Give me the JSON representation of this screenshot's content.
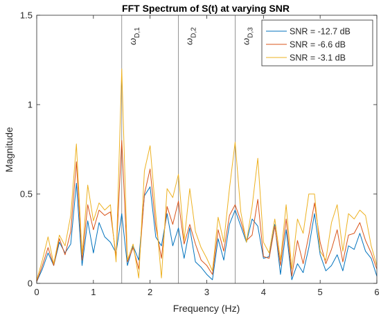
{
  "chart_data": {
    "type": "line",
    "title": "FFT Spectrum of S(t) at varying SNR",
    "xlabel": "Frequency (Hz)",
    "ylabel": "Magnitude",
    "xlim": [
      0,
      6
    ],
    "ylim": [
      0,
      1.5
    ],
    "xticks": [
      "0",
      "1",
      "2",
      "3",
      "4",
      "5",
      "6"
    ],
    "yticks": [
      "0",
      "0.5",
      "1",
      "1.5"
    ],
    "grid": false,
    "legend_position": "top-right",
    "markers": [
      {
        "x": 1.5,
        "label_main": "ω",
        "label_sub": "D,1"
      },
      {
        "x": 2.5,
        "label_main": "ω",
        "label_sub": "D,2"
      },
      {
        "x": 3.5,
        "label_main": "ω",
        "label_sub": "D,3"
      }
    ],
    "x": [
      0,
      0.1,
      0.2,
      0.3,
      0.4,
      0.5,
      0.6,
      0.7,
      0.8,
      0.9,
      1.0,
      1.1,
      1.2,
      1.3,
      1.4,
      1.5,
      1.6,
      1.7,
      1.8,
      1.9,
      2.0,
      2.1,
      2.2,
      2.3,
      2.4,
      2.5,
      2.6,
      2.7,
      2.8,
      2.9,
      3.0,
      3.1,
      3.2,
      3.3,
      3.4,
      3.5,
      3.6,
      3.7,
      3.8,
      3.9,
      4.0,
      4.1,
      4.2,
      4.3,
      4.4,
      4.5,
      4.6,
      4.7,
      4.8,
      4.9,
      5.0,
      5.1,
      5.2,
      5.3,
      5.4,
      5.5,
      5.6,
      5.7,
      5.8,
      5.9,
      6.0
    ],
    "series": [
      {
        "name": "SNR = -12.7 dB",
        "color": "#0072BD",
        "values": [
          0.01,
          0.08,
          0.17,
          0.1,
          0.23,
          0.17,
          0.22,
          0.56,
          0.1,
          0.35,
          0.17,
          0.34,
          0.26,
          0.23,
          0.17,
          0.39,
          0.1,
          0.21,
          0.13,
          0.49,
          0.54,
          0.26,
          0.21,
          0.39,
          0.21,
          0.31,
          0.14,
          0.31,
          0.12,
          0.09,
          0.05,
          0.02,
          0.25,
          0.13,
          0.33,
          0.41,
          0.32,
          0.23,
          0.36,
          0.32,
          0.14,
          0.15,
          0.33,
          0.05,
          0.3,
          0.02,
          0.11,
          0.06,
          0.2,
          0.39,
          0.16,
          0.07,
          0.1,
          0.16,
          0.07,
          0.21,
          0.19,
          0.28,
          0.18,
          0.14,
          0.04
        ]
      },
      {
        "name": "SNR = -6.6 dB",
        "color": "#D95319",
        "values": [
          0.01,
          0.1,
          0.2,
          0.1,
          0.25,
          0.16,
          0.29,
          0.68,
          0.13,
          0.44,
          0.3,
          0.41,
          0.38,
          0.4,
          0.15,
          0.8,
          0.12,
          0.2,
          0.08,
          0.5,
          0.64,
          0.32,
          0.14,
          0.43,
          0.33,
          0.46,
          0.22,
          0.33,
          0.22,
          0.13,
          0.1,
          0.05,
          0.3,
          0.18,
          0.38,
          0.44,
          0.35,
          0.24,
          0.27,
          0.47,
          0.15,
          0.14,
          0.32,
          0.1,
          0.36,
          0.04,
          0.24,
          0.11,
          0.27,
          0.45,
          0.23,
          0.11,
          0.19,
          0.3,
          0.12,
          0.27,
          0.28,
          0.34,
          0.24,
          0.17,
          0.08
        ]
      },
      {
        "name": "SNR = -3.1 dB",
        "color": "#EDB120",
        "values": [
          0.02,
          0.13,
          0.26,
          0.11,
          0.27,
          0.21,
          0.38,
          0.78,
          0.16,
          0.55,
          0.35,
          0.45,
          0.41,
          0.44,
          0.12,
          1.2,
          0.13,
          0.22,
          0.03,
          0.63,
          0.77,
          0.39,
          0.03,
          0.53,
          0.48,
          0.61,
          0.24,
          0.53,
          0.29,
          0.2,
          0.14,
          0.07,
          0.37,
          0.23,
          0.53,
          0.79,
          0.4,
          0.23,
          0.43,
          0.7,
          0.23,
          0.17,
          0.36,
          0.13,
          0.44,
          0.08,
          0.36,
          0.28,
          0.5,
          0.5,
          0.18,
          0.13,
          0.34,
          0.44,
          0.18,
          0.39,
          0.36,
          0.41,
          0.38,
          0.21,
          0.1
        ]
      }
    ]
  }
}
